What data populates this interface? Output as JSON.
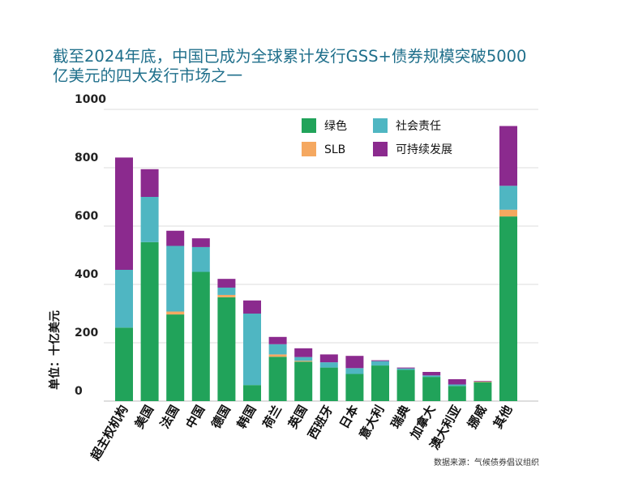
{
  "title_lines": [
    "截至2024年底，中国已成为全球累计发行GSS+债券规模突破5000",
    "亿美元的四大发行市场之一"
  ],
  "source": "数据来源：气候债券倡议组织",
  "chart_data": {
    "type": "bar",
    "stacked": true,
    "ylabel": "单位：十亿美元",
    "ylim": [
      0,
      1000
    ],
    "yticks": [
      0,
      200,
      400,
      600,
      800,
      1000
    ],
    "grid": true,
    "legend_position": "top-right",
    "categories": [
      "超主权机构",
      "美国",
      "法国",
      "中国",
      "德国",
      "韩国",
      "荷兰",
      "英国",
      "西班牙",
      "日本",
      "意大利",
      "瑞典",
      "加拿大",
      "澳大利亚",
      "挪威",
      "其他"
    ],
    "series": [
      {
        "name": "绿色",
        "color": "#21a35a",
        "values": [
          252,
          545,
          297,
          443,
          356,
          55,
          152,
          135,
          115,
          93,
          122,
          107,
          83,
          52,
          65,
          633
        ]
      },
      {
        "name": "SLB",
        "color": "#f5a860",
        "values": [
          0,
          0,
          10,
          0,
          8,
          0,
          8,
          3,
          0,
          0,
          0,
          0,
          0,
          0,
          2,
          23
        ]
      },
      {
        "name": "社会责任",
        "color": "#4fb6c2",
        "values": [
          198,
          155,
          225,
          85,
          25,
          245,
          35,
          13,
          18,
          20,
          15,
          5,
          5,
          5,
          0,
          82
        ]
      },
      {
        "name": "可持续发展",
        "color": "#8b2a8e",
        "values": [
          385,
          95,
          52,
          30,
          30,
          45,
          25,
          30,
          27,
          42,
          3,
          3,
          12,
          18,
          2,
          205
        ]
      }
    ]
  }
}
